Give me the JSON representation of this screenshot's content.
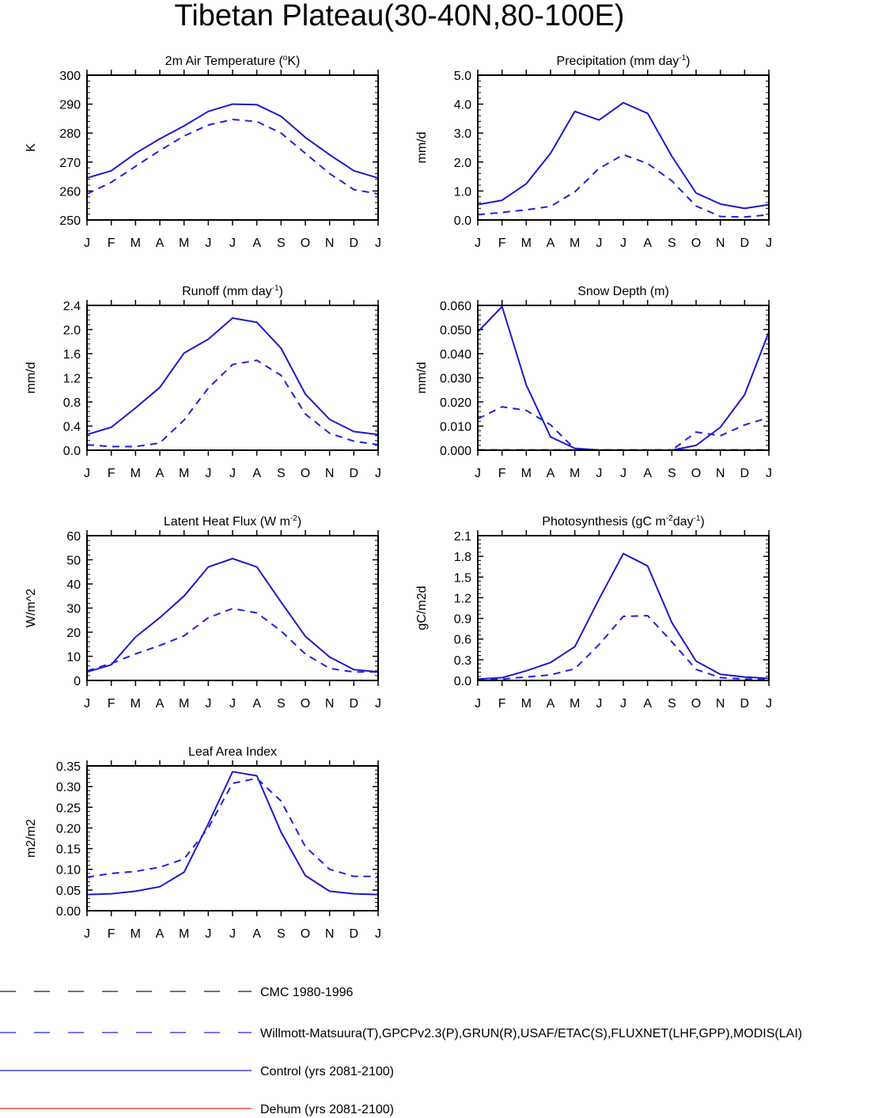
{
  "title": "Tibetan Plateau(30-40N,80-100E)",
  "month_labels": [
    "J",
    "F",
    "M",
    "A",
    "M",
    "J",
    "J",
    "A",
    "S",
    "O",
    "N",
    "D",
    "J"
  ],
  "colors": {
    "axis": "#000000",
    "observed": "#2020dd",
    "control": "#1a1acc",
    "cmc": "#222222",
    "dehum": "#e03020"
  },
  "chart_data": [
    {
      "type": "line",
      "title": "2m Air Temperature (",
      "title_sup": "o",
      "title_after": "K)",
      "title_sup2": "",
      "title_after2": "",
      "ylabel": "K",
      "ylim": [
        250,
        300
      ],
      "yticks": [
        250,
        260,
        270,
        280,
        290,
        300
      ],
      "ytick_labels": [
        "250",
        "260",
        "270",
        "280",
        "290",
        "300"
      ],
      "series": [
        {
          "role": "control",
          "values": [
            264.5,
            267,
            273,
            278,
            282.5,
            287.5,
            290,
            289.8,
            285.8,
            278.5,
            272.5,
            267,
            264.5
          ]
        },
        {
          "role": "observed",
          "values": [
            259,
            263,
            268.5,
            274,
            279,
            282.8,
            284.7,
            284,
            280,
            273,
            266,
            260.5,
            259
          ]
        }
      ]
    },
    {
      "type": "line",
      "title": "Precipitation (mm day",
      "title_sup": "-1",
      "title_after": ")",
      "title_sup2": "",
      "title_after2": "",
      "ylabel": "mm/d",
      "ylim": [
        0,
        5
      ],
      "yticks": [
        0,
        1,
        2,
        3,
        4,
        5
      ],
      "ytick_labels": [
        "0.0",
        "1.0",
        "2.0",
        "3.0",
        "4.0",
        "5.0"
      ],
      "series": [
        {
          "role": "control",
          "values": [
            0.53,
            0.68,
            1.25,
            2.3,
            3.75,
            3.45,
            4.05,
            3.68,
            2.2,
            0.93,
            0.55,
            0.4,
            0.53
          ]
        },
        {
          "role": "observed",
          "values": [
            0.18,
            0.26,
            0.35,
            0.47,
            0.97,
            1.78,
            2.25,
            1.95,
            1.35,
            0.48,
            0.12,
            0.1,
            0.18
          ]
        }
      ]
    },
    {
      "type": "line",
      "title": "Runoff (mm day",
      "title_sup": "-1",
      "title_after": ")",
      "title_sup2": "",
      "title_after2": "",
      "ylabel": "mm/d",
      "ylim": [
        0,
        2.4
      ],
      "yticks": [
        0,
        0.4,
        0.8,
        1.2,
        1.6,
        2.0,
        2.4
      ],
      "ytick_labels": [
        "0.0",
        "0.4",
        "0.8",
        "1.2",
        "1.6",
        "2.0",
        "2.4"
      ],
      "series": [
        {
          "role": "control",
          "values": [
            0.26,
            0.38,
            0.7,
            1.04,
            1.61,
            1.84,
            2.19,
            2.12,
            1.69,
            0.93,
            0.51,
            0.31,
            0.26
          ]
        },
        {
          "role": "observed",
          "values": [
            0.09,
            0.06,
            0.06,
            0.12,
            0.5,
            1.03,
            1.42,
            1.49,
            1.24,
            0.6,
            0.28,
            0.15,
            0.09
          ]
        }
      ]
    },
    {
      "type": "line",
      "title": "Snow Depth (m)",
      "title_sup": "",
      "title_after": "",
      "title_sup2": "",
      "title_after2": "",
      "ylabel": "mm/d",
      "ylim": [
        0,
        0.06
      ],
      "yticks": [
        0,
        0.01,
        0.02,
        0.03,
        0.04,
        0.05,
        0.06
      ],
      "ytick_labels": [
        "0.000",
        "0.010",
        "0.020",
        "0.030",
        "0.040",
        "0.050",
        "0.060"
      ],
      "series": [
        {
          "role": "control",
          "values": [
            0.049,
            0.0595,
            0.027,
            0.0055,
            0.0008,
            0.0001,
            0,
            0,
            0,
            0.002,
            0.0095,
            0.023,
            0.049
          ]
        },
        {
          "role": "observed",
          "values": [
            0.013,
            0.018,
            0.0165,
            0.0105,
            0.0005,
            0,
            0,
            0,
            0,
            0.0075,
            0.006,
            0.0105,
            0.0135
          ]
        },
        {
          "role": "cmc",
          "values": [
            0.0002,
            0.0002,
            0.0002,
            0.0002,
            0.0002,
            0.0002,
            0.0002,
            0.0002,
            0.0002,
            0.0002,
            0.0002,
            0.0002,
            0.0002
          ]
        }
      ]
    },
    {
      "type": "line",
      "title": "Latent Heat Flux (W m",
      "title_sup": "-2",
      "title_after": ")",
      "title_sup2": "",
      "title_after2": "",
      "ylabel": "W/m^2",
      "ylim": [
        0,
        60
      ],
      "yticks": [
        0,
        10,
        20,
        30,
        40,
        50,
        60
      ],
      "ytick_labels": [
        "0",
        "10",
        "20",
        "30",
        "40",
        "50",
        "60"
      ],
      "series": [
        {
          "role": "control",
          "values": [
            3.5,
            6.5,
            18,
            26,
            35,
            47,
            50.5,
            47,
            32.5,
            18.3,
            9.7,
            4.5,
            3.5
          ]
        },
        {
          "role": "observed",
          "values": [
            4,
            7,
            11,
            14.5,
            18.5,
            26,
            29.8,
            28,
            20.5,
            11,
            5,
            3.5,
            3.5
          ]
        }
      ]
    },
    {
      "type": "line",
      "title": "Photosynthesis (gC m",
      "title_sup": "-2",
      "title_after": "day",
      "title_sup2": "-1",
      "title_after2": ")",
      "ylabel": "gC/m2d",
      "ylim": [
        0,
        2.1
      ],
      "yticks": [
        0,
        0.3,
        0.6,
        0.9,
        1.2,
        1.5,
        1.8,
        2.1
      ],
      "ytick_labels": [
        "0.0",
        "0.3",
        "0.6",
        "0.9",
        "1.2",
        "1.5",
        "1.8",
        "2.1"
      ],
      "series": [
        {
          "role": "control",
          "values": [
            0.02,
            0.04,
            0.14,
            0.26,
            0.49,
            1.18,
            1.84,
            1.66,
            0.84,
            0.28,
            0.09,
            0.05,
            0.03
          ]
        },
        {
          "role": "observed",
          "values": [
            0.01,
            0.02,
            0.05,
            0.08,
            0.17,
            0.52,
            0.93,
            0.94,
            0.56,
            0.16,
            0.04,
            0.02,
            0.02
          ]
        }
      ]
    },
    {
      "type": "line",
      "title": "Leaf Area Index",
      "title_sup": "",
      "title_after": "",
      "title_sup2": "",
      "title_after2": "",
      "ylabel": "m2/m2",
      "ylim": [
        0,
        0.35
      ],
      "yticks": [
        0,
        0.05,
        0.1,
        0.15,
        0.2,
        0.25,
        0.3,
        0.35
      ],
      "ytick_labels": [
        "0.00",
        "0.05",
        "0.10",
        "0.15",
        "0.20",
        "0.25",
        "0.30",
        "0.35"
      ],
      "series": [
        {
          "role": "control",
          "values": [
            0.039,
            0.041,
            0.047,
            0.058,
            0.093,
            0.21,
            0.336,
            0.326,
            0.19,
            0.085,
            0.047,
            0.041,
            0.039
          ]
        },
        {
          "role": "observed",
          "values": [
            0.081,
            0.09,
            0.095,
            0.105,
            0.125,
            0.2,
            0.308,
            0.32,
            0.265,
            0.155,
            0.1,
            0.083,
            0.083
          ]
        }
      ]
    }
  ],
  "legend": [
    {
      "role": "cmc",
      "label": "CMC 1980-1996"
    },
    {
      "role": "observed",
      "label": "Willmott-Matsuura(T),GPCPv2.3(P),GRUN(R),USAF/ETAC(S),FLUXNET(LHF,GPP),MODIS(LAI)"
    },
    {
      "role": "control",
      "label": "Control (yrs 2081-2100)"
    },
    {
      "role": "dehum",
      "label": "Dehum (yrs 2081-2100)"
    }
  ]
}
